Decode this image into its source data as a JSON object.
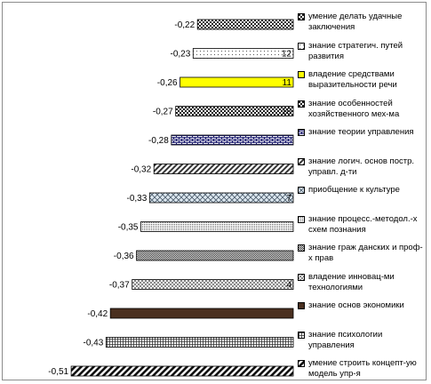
{
  "chart_data": {
    "type": "bar",
    "orientation": "horizontal",
    "grid": false,
    "legend_position": "right",
    "series": [
      {
        "value": -0.22,
        "label": "-0,22",
        "legend": "умение делать удачные заключения",
        "color": "#2a2a2a",
        "fill": "#ffffff",
        "pattern": "diag-check",
        "inner": ""
      },
      {
        "value": -0.23,
        "label": "-0,23",
        "legend": "знание стратегич. путей развития",
        "color": "#555555",
        "fill": "#ffffff",
        "pattern": "sparse-dots",
        "inner": "12"
      },
      {
        "value": -0.26,
        "label": "-0,26",
        "legend": "владение средствами выразительности речи",
        "color": "#000000",
        "fill": "#ffff00",
        "pattern": "solid",
        "inner": "11"
      },
      {
        "value": -0.27,
        "label": "-0,27",
        "legend": "знание особенностей хозяйственного мех-ма",
        "color": "#222222",
        "fill": "#ffffff",
        "pattern": "checker",
        "inner": "10"
      },
      {
        "value": -0.28,
        "label": "-0,28",
        "legend": "знание теории управления",
        "color": "#1a1a6e",
        "fill": "#ffffff",
        "pattern": "brick",
        "inner": ""
      },
      {
        "value": -0.32,
        "label": "-0,32",
        "legend": "знание логич. основ постр. управл. д-ти",
        "color": "#333333",
        "fill": "#ffffff",
        "pattern": "diag-wide",
        "inner": ""
      },
      {
        "value": -0.33,
        "label": "-0,33",
        "legend": "приобщение к культуре",
        "color": "#4a5a6a",
        "fill": "#dde8f0",
        "pattern": "crosshatch",
        "inner": "7"
      },
      {
        "value": -0.35,
        "label": "-0,35",
        "legend": "знание процесс.-методол.-х схем познания",
        "color": "#555555",
        "fill": "#ffffff",
        "pattern": "dense-dots",
        "inner": ""
      },
      {
        "value": -0.36,
        "label": "-0,36",
        "legend": "знание граж данских и проф-х прав",
        "color": "#222222",
        "fill": "#ffffff",
        "pattern": "small-check",
        "inner": ""
      },
      {
        "value": -0.37,
        "label": "-0,37",
        "legend": "владение инновац-ми технологиями",
        "color": "#444444",
        "fill": "#ffffff",
        "pattern": "diag-cross",
        "inner": "4"
      },
      {
        "value": -0.42,
        "label": "-0,42",
        "legend": "знание основ экономики",
        "color": "#3a2418",
        "fill": "#4a3020",
        "pattern": "solid",
        "inner": ""
      },
      {
        "value": -0.43,
        "label": "-0,43",
        "legend": "знание психологии управления",
        "color": "#333333",
        "fill": "#ffffff",
        "pattern": "grid",
        "inner": ""
      },
      {
        "value": -0.51,
        "label": "-0,51",
        "legend": "умение строить концепт-ую модель упр-я",
        "color": "#111111",
        "fill": "#ffffff",
        "pattern": "diag-bold",
        "inner": ""
      }
    ]
  }
}
